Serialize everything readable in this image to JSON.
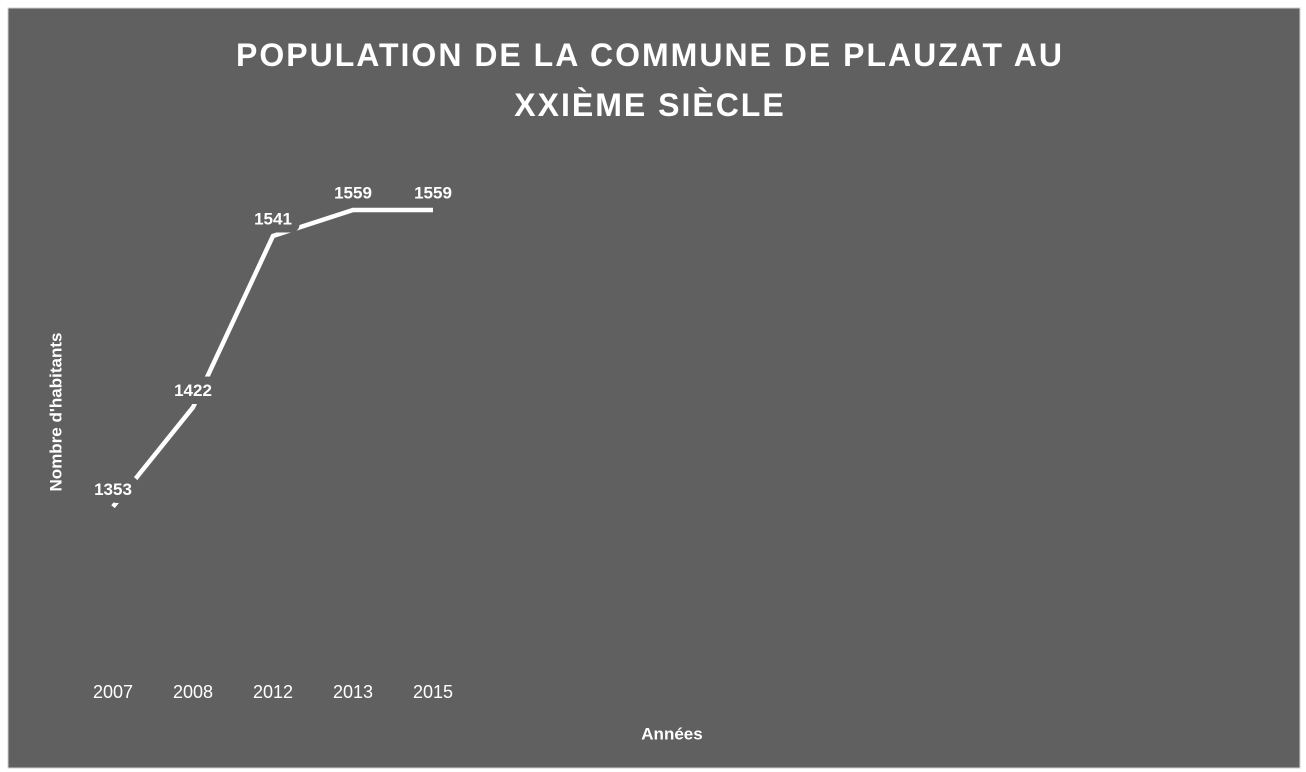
{
  "chart_data": {
    "type": "line",
    "title": "POPULATION DE LA COMMUNE DE PLAUZAT AU XXIÈME SIÈCLE",
    "x_label": "Années",
    "y_label": "Nombre d'habitants",
    "categories": [
      "2007",
      "2008",
      "2012",
      "2013",
      "2015"
    ],
    "values": [
      1353,
      1422,
      1541,
      1559,
      1559
    ],
    "color": "#ffffff",
    "ylim": [
      1250,
      1600
    ],
    "grid": false,
    "drop_lines": true
  }
}
